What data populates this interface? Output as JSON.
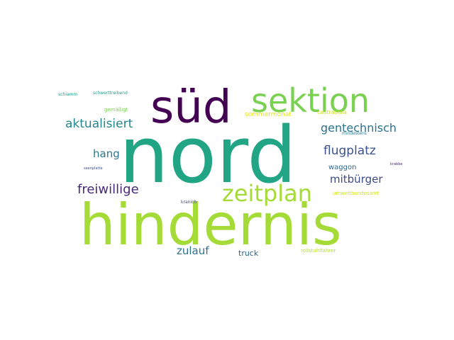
{
  "words": [
    {
      "text": "nord",
      "color": "#21a585"
    },
    {
      "text": "hindernis",
      "color": "#a5db36"
    },
    {
      "text": "süd",
      "color": "#440154"
    },
    {
      "text": "sektion",
      "color": "#7ad151"
    },
    {
      "text": "zeitplan",
      "color": "#a5db36"
    },
    {
      "text": "aktualisiert",
      "color": "#24868e"
    },
    {
      "text": "gentechnisch",
      "color": "#2c728e"
    },
    {
      "text": "flugplatz",
      "color": "#3b528b"
    },
    {
      "text": "freiwillige",
      "color": "#482878"
    },
    {
      "text": "hang",
      "color": "#29798e"
    },
    {
      "text": "mitbürger",
      "color": "#3e4989"
    },
    {
      "text": "zulauf",
      "color": "#2c728e"
    },
    {
      "text": "truck",
      "color": "#31688e"
    },
    {
      "text": "waggon",
      "color": "#31688e"
    },
    {
      "text": "sommermonat",
      "color": "#e5e419"
    },
    {
      "text": "castrastea",
      "color": "#d2e21b"
    },
    {
      "text": "gemäßigt",
      "color": "#7ad151"
    },
    {
      "text": "schwerttreibend",
      "color": "#1f9e89"
    },
    {
      "text": "schiamm",
      "color": "#1f9e89"
    },
    {
      "text": "mindestens",
      "color": "#2a788e"
    },
    {
      "text": "umweltbundesamt",
      "color": "#d2e21b"
    },
    {
      "text": "rollstuhlfahrer",
      "color": "#b5de2b"
    },
    {
      "text": "kranich",
      "color": "#414487"
    },
    {
      "text": "seenplatte",
      "color": "#3b528b"
    },
    {
      "text": "krabbe",
      "color": "#482878"
    }
  ]
}
